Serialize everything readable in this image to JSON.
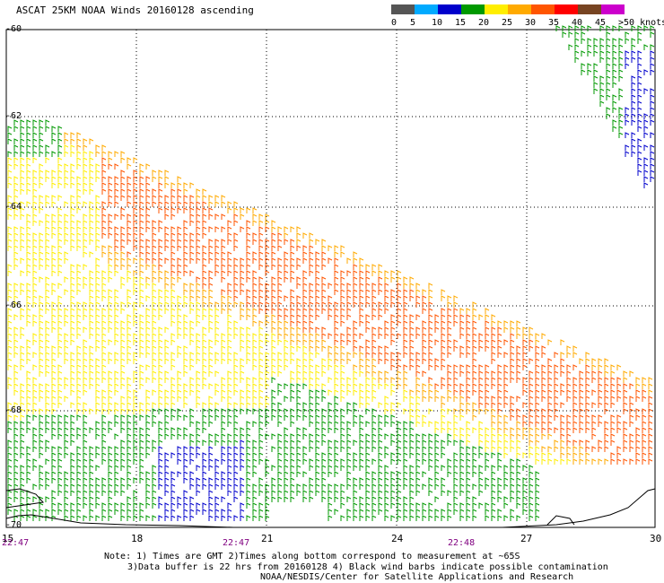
{
  "title": "ASCAT 25KM NOAA Winds 20160128 ascending",
  "legend": {
    "colors": [
      "#555555",
      "#00aaff",
      "#0000cc",
      "#009900",
      "#ffee00",
      "#ffaa00",
      "#ff5500",
      "#ff0000",
      "#774422",
      "#cc00cc",
      "#660099"
    ],
    "labels": [
      "0",
      "5",
      "10",
      "15",
      "20",
      "25",
      "30",
      "35",
      "40",
      "45",
      ">50 knots"
    ]
  },
  "map": {
    "lon_ticks": [
      "15",
      "18",
      "21",
      "24",
      "27",
      "30"
    ],
    "lat_ticks": [
      "-60",
      "-62",
      "-64",
      "-66",
      "-68",
      "-70"
    ],
    "pass_times": [
      "22:47",
      "22:47",
      "22:48"
    ]
  },
  "notes": [
    "Note: 1) Times are GMT 2)Times along bottom correspond to measurement at ~65S",
    "3)Data buffer is 22 hrs from 20160128 4) Black wind barbs indicate possible contamination",
    "NOAA/NESDIS/Center for Satellite Applications and Research"
  ]
}
